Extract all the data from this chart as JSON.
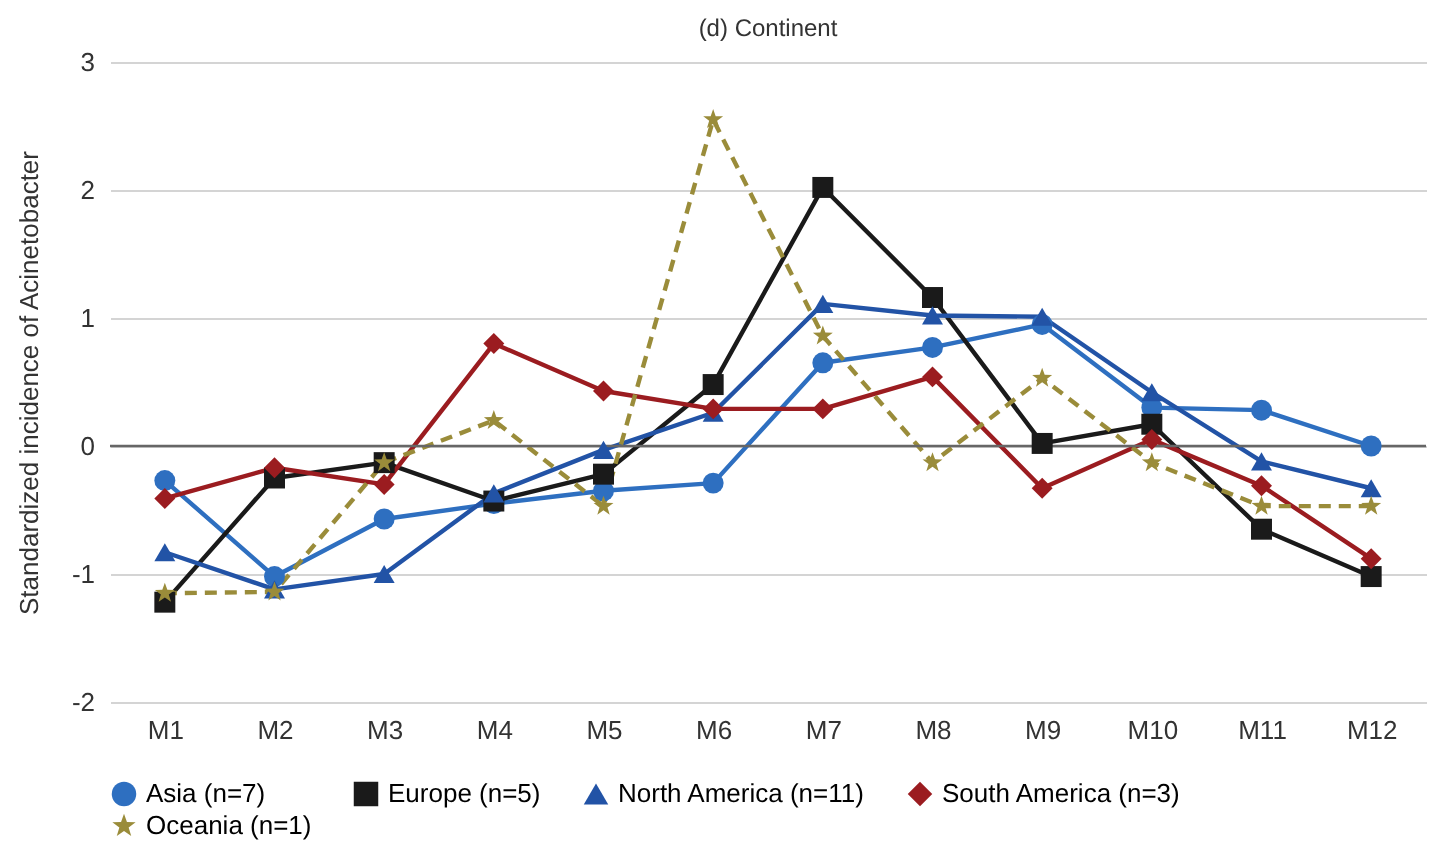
{
  "chart_data": {
    "type": "line",
    "title": "(d) Continent",
    "ylabel": "Standardized incidence of Acinetobacter",
    "categories": [
      "M1",
      "M2",
      "M3",
      "M4",
      "M5",
      "M6",
      "M7",
      "M8",
      "M9",
      "M10",
      "M11",
      "M12"
    ],
    "series": [
      {
        "name": "Asia (n=7)",
        "color": "#2e6fc0",
        "marker": "circle",
        "line_style": "solid",
        "values": [
          -0.27,
          -1.02,
          -0.57,
          -0.45,
          -0.35,
          -0.29,
          0.65,
          0.77,
          0.95,
          0.3,
          0.28,
          0.0
        ]
      },
      {
        "name": "Europe (n=5)",
        "color": "#1a1a1a",
        "marker": "square",
        "line_style": "solid",
        "values": [
          -1.22,
          -0.25,
          -0.13,
          -0.43,
          -0.22,
          0.48,
          2.02,
          1.16,
          0.02,
          0.17,
          -0.65,
          -1.02
        ]
      },
      {
        "name": "North America (n=11)",
        "color": "#2253a6",
        "marker": "triangle",
        "line_style": "solid",
        "values": [
          -0.83,
          -1.12,
          -1.0,
          -0.37,
          -0.03,
          0.26,
          1.11,
          1.02,
          1.01,
          0.42,
          -0.12,
          -0.33
        ]
      },
      {
        "name": "South America (n=3)",
        "color": "#9b1c20",
        "marker": "diamond",
        "line_style": "solid",
        "values": [
          -0.41,
          -0.17,
          -0.3,
          0.8,
          0.43,
          0.29,
          0.29,
          0.54,
          -0.33,
          0.05,
          -0.31,
          -0.88
        ]
      },
      {
        "name": "Oceania (n=1)",
        "color": "#9a8c3a",
        "marker": "star",
        "line_style": "dashed",
        "values": [
          -1.15,
          -1.14,
          -0.13,
          0.2,
          -0.47,
          2.55,
          0.86,
          -0.13,
          0.53,
          -0.13,
          -0.47,
          -0.47
        ]
      }
    ],
    "ylim": [
      -2,
      3
    ],
    "yticks": [
      -2,
      -1,
      0,
      1,
      2,
      3
    ],
    "grid": "y",
    "legend": "bottom",
    "ref_lines": [
      {
        "axis": "y",
        "value": 0,
        "color": "#666666"
      }
    ]
  }
}
